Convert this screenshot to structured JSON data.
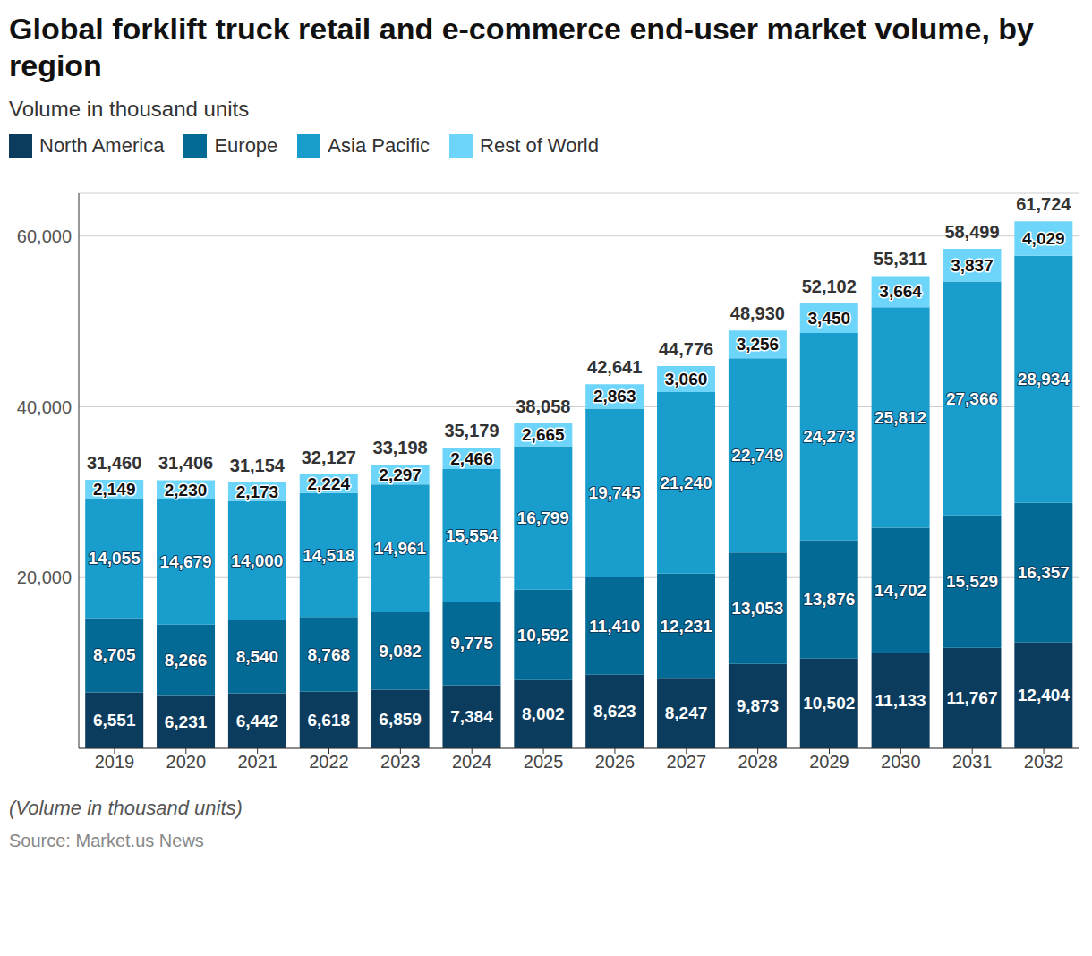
{
  "chart_data": {
    "type": "bar",
    "title": "Global forklift truck retail and e-commerce end-user market volume, by region",
    "subtitle": "Volume in thousand units",
    "caption": "(Volume in thousand units)",
    "source": "Source: Market.us News",
    "stacked": true,
    "data_labels": true,
    "grid": true,
    "legend": "top-left",
    "categories": [
      "2019",
      "2020",
      "2021",
      "2022",
      "2023",
      "2024",
      "2025",
      "2026",
      "2027",
      "2028",
      "2029",
      "2030",
      "2031",
      "2032"
    ],
    "series": [
      {
        "name": "North America",
        "color": "#0b3c5d",
        "values": [
          6551,
          6231,
          6442,
          6618,
          6859,
          7384,
          8002,
          8623,
          8247,
          9873,
          10502,
          11133,
          11767,
          12404
        ],
        "value_labels": [
          "6,551",
          "6,231",
          "6,442",
          "6,618",
          "6,859",
          "7,384",
          "8,002",
          "8,623",
          "8,247",
          "9,873",
          "10,502",
          "11,133",
          "11,767",
          "12,404"
        ]
      },
      {
        "name": "Europe",
        "color": "#036a95",
        "values": [
          8705,
          8266,
          8540,
          8768,
          9082,
          9775,
          10592,
          11410,
          12231,
          13053,
          13876,
          14702,
          15529,
          16357
        ],
        "value_labels": [
          "8,705",
          "8,266",
          "8,540",
          "8,768",
          "9,082",
          "9,775",
          "10,592",
          "11,410",
          "12,231",
          "13,053",
          "13,876",
          "14,702",
          "15,529",
          "16,357"
        ]
      },
      {
        "name": "Asia Pacific",
        "color": "#199dcc",
        "values": [
          14055,
          14679,
          14000,
          14518,
          14961,
          15554,
          16799,
          19745,
          21240,
          22749,
          24273,
          25812,
          27366,
          28934
        ],
        "value_labels": [
          "14,055",
          "14,679",
          "14,000",
          "14,518",
          "14,961",
          "15,554",
          "16,799",
          "19,745",
          "21,240",
          "22,749",
          "24,273",
          "25,812",
          "27,366",
          "28,934"
        ]
      },
      {
        "name": "Rest of World",
        "color": "#6dd5fa",
        "values": [
          2149,
          2230,
          2173,
          2224,
          2297,
          2466,
          2665,
          2863,
          3060,
          3256,
          3450,
          3664,
          3837,
          4029
        ],
        "value_labels": [
          "2,149",
          "2,230",
          "2,173",
          "2,224",
          "2,297",
          "2,466",
          "2,665",
          "2,863",
          "3,060",
          "3,256",
          "3,450",
          "3,664",
          "3,837",
          "4,029"
        ]
      }
    ],
    "totals": {
      "values": [
        31460,
        31406,
        31154,
        32127,
        33198,
        35179,
        38058,
        42641,
        44776,
        48930,
        52102,
        55311,
        58499,
        61724
      ],
      "value_labels": [
        "31,460",
        "31,406",
        "31,154",
        "32,127",
        "33,198",
        "35,179",
        "38,058",
        "42,641",
        "44,776",
        "48,930",
        "52,102",
        "55,311",
        "58,499",
        "61,724"
      ]
    },
    "ylim": [
      0,
      65000
    ],
    "yticks": [
      {
        "value": 20000,
        "label": "20,000"
      },
      {
        "value": 40000,
        "label": "40,000"
      },
      {
        "value": 60000,
        "label": "60,000"
      }
    ]
  }
}
